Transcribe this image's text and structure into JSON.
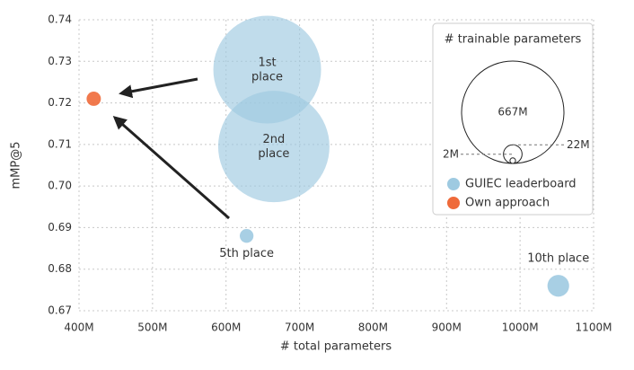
{
  "chart_data": {
    "type": "scatter",
    "xlabel": "# total parameters",
    "ylabel": "mMP@5",
    "xlim": [
      400,
      1100
    ],
    "xticks": [
      {
        "value": 400,
        "label": "400M"
      },
      {
        "value": 500,
        "label": "500M"
      },
      {
        "value": 600,
        "label": "600M"
      },
      {
        "value": 700,
        "label": "700M"
      },
      {
        "value": 800,
        "label": "800M"
      },
      {
        "value": 900,
        "label": "900M"
      },
      {
        "value": 1000,
        "label": "1000M"
      },
      {
        "value": 1100,
        "label": "1100M"
      }
    ],
    "ylim": [
      0.67,
      0.74
    ],
    "yticks": [
      0.67,
      0.68,
      0.69,
      {
        "value": 0.7,
        "label": "0.70"
      },
      0.71,
      0.72,
      0.73,
      0.74
    ],
    "grid": true,
    "series": [
      {
        "name": "GUIEC leaderboard",
        "color": "#9ecae1",
        "x": [
          656,
          665,
          628,
          1052
        ],
        "values": [
          0.728,
          0.7095,
          0.688,
          0.676
        ],
        "sizes": [
          739,
          789,
          12,
          30
        ],
        "point_labels": [
          "1st place",
          "2nd place",
          "5th place",
          "10th place"
        ]
      },
      {
        "name": "Own approach",
        "color": "#ef6a3a",
        "x": [
          420
        ],
        "values": [
          0.721
        ],
        "sizes": [
          13
        ]
      }
    ],
    "size_legend": {
      "title": "# trainable parameters",
      "sizes": [
        {
          "value": 667,
          "label": "667M"
        },
        {
          "value": 22,
          "label": "22M"
        },
        {
          "value": 2,
          "label": "2M"
        }
      ]
    }
  }
}
